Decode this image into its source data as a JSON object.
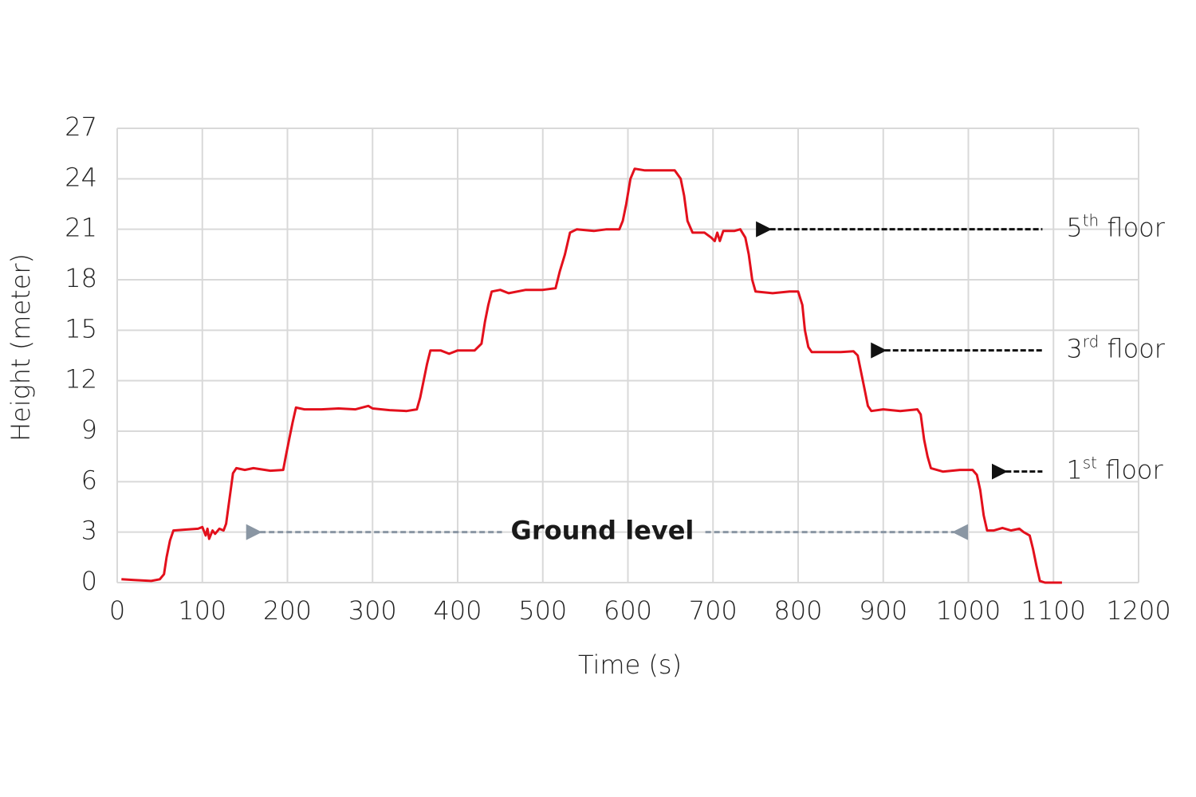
{
  "chart_data": {
    "type": "line",
    "xlabel": "Time (s)",
    "ylabel": "Height (meter)",
    "color": "#e3101c",
    "grid": true,
    "xlim": [
      0,
      1200
    ],
    "ylim": [
      0,
      27
    ],
    "xticks": [
      0,
      100,
      200,
      300,
      400,
      500,
      600,
      700,
      800,
      900,
      1000,
      1100,
      1200
    ],
    "yticks": [
      0,
      3,
      6,
      9,
      12,
      15,
      18,
      21,
      24,
      27
    ],
    "x": [
      5,
      20,
      40,
      50,
      55,
      58,
      62,
      66,
      80,
      95,
      100,
      104,
      106,
      108,
      112,
      115,
      120,
      125,
      128,
      132,
      136,
      140,
      150,
      160,
      180,
      195,
      198,
      202,
      206,
      210,
      220,
      240,
      260,
      280,
      295,
      300,
      320,
      340,
      352,
      356,
      360,
      364,
      368,
      380,
      390,
      400,
      420,
      428,
      432,
      436,
      440,
      450,
      460,
      480,
      500,
      515,
      520,
      526,
      532,
      540,
      560,
      575,
      590,
      594,
      598,
      603,
      608,
      620,
      640,
      655,
      662,
      666,
      670,
      676,
      690,
      698,
      702,
      705,
      708,
      712,
      725,
      732,
      738,
      742,
      746,
      750,
      770,
      790,
      800,
      805,
      808,
      812,
      816,
      830,
      850,
      865,
      870,
      874,
      878,
      882,
      886,
      900,
      920,
      940,
      944,
      948,
      952,
      956,
      970,
      990,
      1005,
      1010,
      1014,
      1018,
      1022,
      1030,
      1040,
      1050,
      1060,
      1065,
      1072,
      1076,
      1080,
      1084,
      1090,
      1100,
      1110
    ],
    "values": [
      0.2,
      0.15,
      0.1,
      0.2,
      0.5,
      1.5,
      2.5,
      3.1,
      3.15,
      3.2,
      3.3,
      2.8,
      3.2,
      2.6,
      3.1,
      2.9,
      3.2,
      3.1,
      3.5,
      5,
      6.5,
      6.8,
      6.7,
      6.8,
      6.65,
      6.7,
      7.5,
      8.5,
      9.5,
      10.4,
      10.3,
      10.3,
      10.35,
      10.3,
      10.5,
      10.35,
      10.25,
      10.2,
      10.3,
      11,
      12,
      13,
      13.8,
      13.8,
      13.6,
      13.8,
      13.8,
      14.2,
      15.5,
      16.5,
      17.3,
      17.4,
      17.2,
      17.4,
      17.4,
      17.5,
      18.5,
      19.5,
      20.8,
      21,
      20.9,
      21,
      21,
      21.5,
      22.5,
      24,
      24.6,
      24.5,
      24.5,
      24.5,
      24,
      23,
      21.5,
      20.8,
      20.8,
      20.5,
      20.3,
      20.8,
      20.3,
      20.9,
      20.9,
      21,
      20.5,
      19.5,
      18,
      17.3,
      17.2,
      17.3,
      17.3,
      16.5,
      15,
      14,
      13.7,
      13.7,
      13.7,
      13.75,
      13.5,
      12.5,
      11.5,
      10.5,
      10.2,
      10.3,
      10.2,
      10.3,
      10,
      8.5,
      7.5,
      6.8,
      6.6,
      6.7,
      6.7,
      6.4,
      5.5,
      4,
      3.1,
      3.1,
      3.25,
      3.1,
      3.2,
      3,
      2.8,
      2,
      1,
      0.1,
      0,
      0,
      0
    ],
    "ground": {
      "text": "Ground level",
      "y": 3,
      "left_arrow": [
        151,
        452
      ],
      "right_arrow": [
        691,
        1000
      ],
      "text_x": 570,
      "color": "#8a96a3"
    },
    "floors": [
      {
        "ordinal": "5",
        "suffix": "th",
        "word": " floor",
        "head_x": 750,
        "tail_x": 1087,
        "y": 21
      },
      {
        "ordinal": "3",
        "suffix": "rd",
        "word": " floor",
        "head_x": 885,
        "tail_x": 1087,
        "y": 13.8
      },
      {
        "ordinal": "1",
        "suffix": "st",
        "word": " floor",
        "head_x": 1027,
        "tail_x": 1087,
        "y": 6.6
      }
    ]
  }
}
